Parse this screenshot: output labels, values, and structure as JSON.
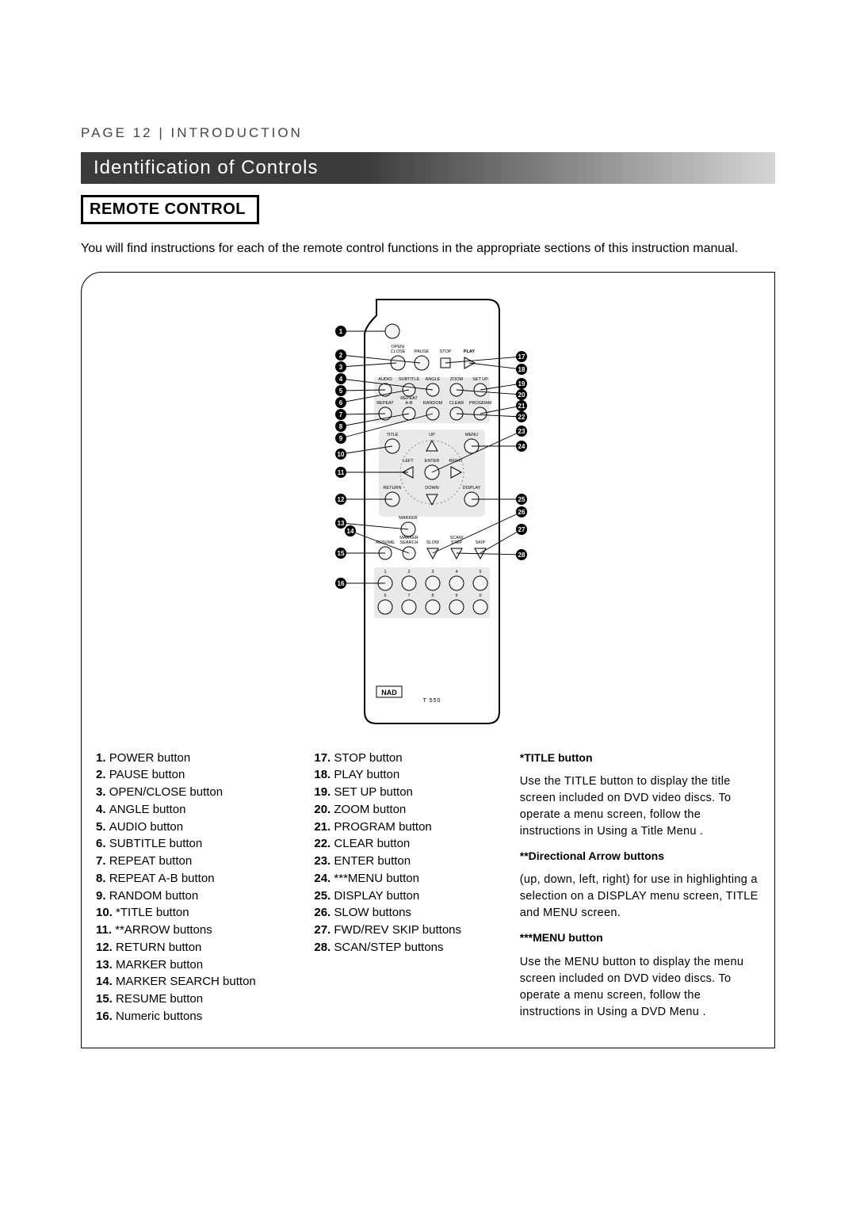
{
  "header": {
    "page_label": "PAGE 12",
    "section_label": "INTRODUCTION",
    "separator": "|"
  },
  "section_title": "Identification of Controls",
  "sub_heading": "REMOTE CONTROL",
  "intro_text": "You will find instructions for each of the remote control functions in the appropriate sections of this instruction manual.",
  "remote": {
    "brand": "NAD",
    "model": "T 550",
    "row_labels": {
      "r1": [
        "OPEN/\nCLOSE",
        "PAUSE",
        "STOP",
        "PLAY"
      ],
      "r2": [
        "AUDIO",
        "SUBTITLE",
        "ANGLE",
        "ZOOM",
        "SET UP"
      ],
      "r3": [
        "REPEAT",
        "REPEAT\nA-B",
        "RANDOM",
        "CLEAR",
        "PROGRAM"
      ],
      "nav_top": [
        "TITLE",
        "UP",
        "MENU"
      ],
      "nav_mid": [
        "LEFT",
        "ENTER",
        "RIGHT"
      ],
      "nav_bot": [
        "RETURN",
        "DOWN",
        "DISPLAY"
      ],
      "marker": "MARKER",
      "r5": [
        "RESUME",
        "MARKER\nSEARCH",
        "SLOW",
        "SCAN/\nSTEP",
        "SKIP"
      ],
      "num_top": [
        "1",
        "2",
        "3",
        "4",
        "5"
      ],
      "num_bot": [
        "6",
        "7",
        "8",
        "9",
        "0"
      ]
    },
    "callouts_left": [
      "1",
      "2",
      "3",
      "4",
      "5",
      "6",
      "7",
      "8",
      "9",
      "10",
      "11",
      "12",
      "13",
      "14",
      "15",
      "16"
    ],
    "callouts_right": [
      "17",
      "18",
      "19",
      "20",
      "21",
      "22",
      "23",
      "24",
      "25",
      "26",
      "27",
      "28"
    ]
  },
  "legend_col1": [
    {
      "n": "1.",
      "t": "POWER button"
    },
    {
      "n": "2.",
      "t": "PAUSE button"
    },
    {
      "n": "3.",
      "t": "OPEN/CLOSE button"
    },
    {
      "n": "4.",
      "t": "ANGLE button"
    },
    {
      "n": "5.",
      "t": "AUDIO button"
    },
    {
      "n": "6.",
      "t": "SUBTITLE button"
    },
    {
      "n": "7.",
      "t": "REPEAT button"
    },
    {
      "n": "8.",
      "t": "REPEAT A-B button"
    },
    {
      "n": "9.",
      "t": "RANDOM button"
    },
    {
      "n": "10.",
      "t": "*TITLE button"
    },
    {
      "n": "11.",
      "t": "**ARROW buttons"
    },
    {
      "n": "12.",
      "t": "RETURN button"
    },
    {
      "n": "13.",
      "t": "MARKER button"
    },
    {
      "n": "14.",
      "t": "MARKER SEARCH button"
    },
    {
      "n": "15.",
      "t": "RESUME button"
    },
    {
      "n": "16.",
      "t": "Numeric buttons"
    }
  ],
  "legend_col2": [
    {
      "n": "17.",
      "t": "STOP button"
    },
    {
      "n": "18.",
      "t": "PLAY button"
    },
    {
      "n": "19.",
      "t": "SET UP button"
    },
    {
      "n": "20.",
      "t": "ZOOM button"
    },
    {
      "n": "21.",
      "t": "PROGRAM button"
    },
    {
      "n": "22.",
      "t": "CLEAR button"
    },
    {
      "n": "23.",
      "t": "ENTER button"
    },
    {
      "n": "24.",
      "t": "***MENU button"
    },
    {
      "n": "25.",
      "t": "DISPLAY button"
    },
    {
      "n": "26.",
      "t": "SLOW buttons"
    },
    {
      "n": "27.",
      "t": "FWD/REV SKIP buttons"
    },
    {
      "n": "28.",
      "t": "SCAN/STEP buttons"
    }
  ],
  "notes": [
    {
      "h": "*TITLE button",
      "b": "Use the TITLE button to display the title screen included on DVD video discs. To operate a menu screen, follow the instructions in  Using a Title Menu ."
    },
    {
      "h": "**Directional Arrow buttons",
      "b": "(up, down, left, right) for use in highlighting a selection on a DISPLAY menu screen, TITLE and MENU screen."
    },
    {
      "h": "***MENU button",
      "b": "Use the MENU button to display the menu screen included on DVD video discs. To operate a menu screen, follow the instructions in  Using a DVD Menu ."
    }
  ],
  "style": {
    "page_bg": "#ffffff",
    "text": "#000000",
    "bar_dark": "#3a3a3a",
    "bar_light": "#d5d5d5",
    "callout_fill": "#000000",
    "callout_text": "#ffffff",
    "remote_stroke": "#000000",
    "remote_fill": "#ffffff",
    "button_fill": "#f4f4f4",
    "font_body_pt": 12,
    "font_header_pt": 13,
    "font_title_pt": 18
  }
}
